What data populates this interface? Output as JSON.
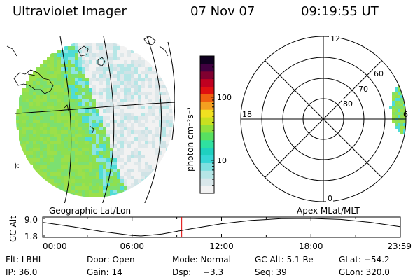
{
  "header": {
    "title": "Ultraviolet Imager",
    "date": "07 Nov 07",
    "time": "09:19:55 UT"
  },
  "panels": {
    "geo_label": "Geographic Lat/Lon",
    "apex_label": "Apex  MLat/MLT"
  },
  "colorbar": {
    "label": "photon cm⁻²s⁻¹",
    "scale": "log",
    "range": [
      3,
      450
    ],
    "ticks": [
      {
        "value": 10,
        "label": "10"
      },
      {
        "value": 100,
        "label": "100"
      }
    ],
    "colors": [
      "#f2f2f2",
      "#d9e7ea",
      "#b6e6e6",
      "#7fe0e0",
      "#36d6d6",
      "#1fd0c0",
      "#2fe0a0",
      "#58e060",
      "#90e03c",
      "#c8e020",
      "#f0e020",
      "#f4a020",
      "#f06010",
      "#e01010",
      "#c00020",
      "#800030",
      "#400040",
      "#100020"
    ]
  },
  "polar": {
    "mlt_labels": [
      "12",
      "18",
      "6",
      "0"
    ],
    "mlat_labels": [
      "60",
      "70",
      "80"
    ]
  },
  "chart_data": {
    "type": "line",
    "title": "",
    "ylabel": "GC Alt",
    "ylim": [
      1.8,
      9.0
    ],
    "yticks": [
      "9.0",
      "1.8"
    ],
    "xticks": [
      "00:00",
      "06:00",
      "12:00",
      "18:00",
      "23:59"
    ],
    "x_hours": [
      0,
      2,
      4,
      6,
      6.6,
      8,
      10,
      12,
      14,
      16,
      18,
      20,
      22,
      23.98
    ],
    "altitude_re": [
      7.4,
      5.6,
      3.6,
      2.0,
      1.8,
      2.6,
      4.8,
      6.8,
      8.2,
      8.9,
      9.0,
      8.6,
      7.4,
      5.6
    ],
    "current_time_hours": 9.33,
    "current_alt_re": 5.1
  },
  "footer": {
    "flt": "Flt: LBHL",
    "door": "Door: Open",
    "mode": "Mode: Normal",
    "gcalt": "GC Alt: 5.1 Re",
    "glat": "GLat: −54.2",
    "ip": "IP: 36.0",
    "gain": "Gain: 14",
    "dsp": "Dsp:",
    "dsp_val": "−3.3",
    "seq": "Seq: 39",
    "glon": "GLon: 320.0"
  }
}
